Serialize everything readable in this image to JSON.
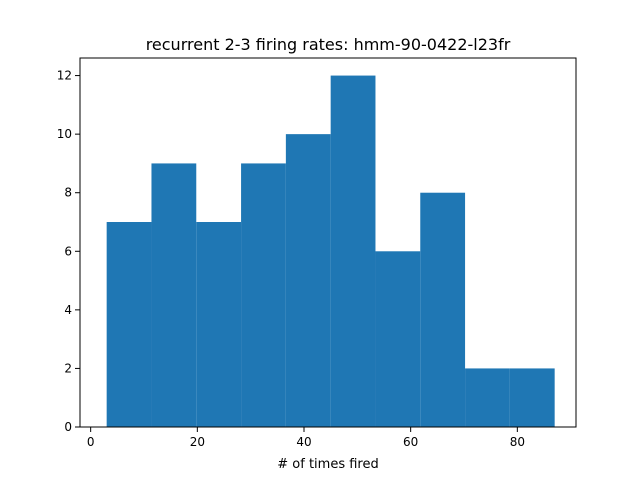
{
  "chart_data": {
    "type": "bar",
    "title": "recurrent 2-3 firing rates: hmm-90-0422-l23fr",
    "xlabel": "# of times fired",
    "ylabel": "",
    "bin_edges": [
      3.0,
      11.4,
      19.8,
      28.2,
      36.6,
      45.0,
      53.4,
      61.8,
      70.2,
      78.6,
      87.0
    ],
    "values": [
      7,
      9,
      7,
      9,
      10,
      12,
      6,
      8,
      2,
      2
    ],
    "xlim": [
      -2,
      91
    ],
    "ylim": [
      0,
      12.6
    ],
    "xticks": [
      0,
      20,
      40,
      60,
      80
    ],
    "xtick_labels": [
      "0",
      "20",
      "40",
      "60",
      "80"
    ],
    "yticks": [
      0,
      2,
      4,
      6,
      8,
      10,
      12
    ],
    "ytick_labels": [
      "0",
      "2",
      "4",
      "6",
      "8",
      "10",
      "12"
    ],
    "grid": false,
    "bar_color": "#1f77b4"
  }
}
